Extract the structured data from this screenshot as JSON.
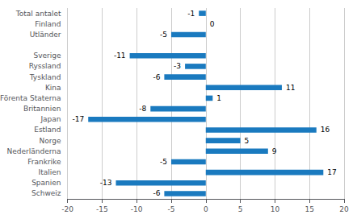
{
  "chart_data": {
    "type": "bar",
    "orientation": "horizontal",
    "categories": [
      "Schweiz",
      "Spanien",
      "Italien",
      "Frankrike",
      "Nederländerna",
      "Norge",
      "Estland",
      "Japan",
      "Britannien",
      "Förenta Staterna",
      "Kina",
      "Tyskland",
      "Ryssland",
      "Sverige",
      null,
      "Utländer",
      "Finland",
      "Total antalet"
    ],
    "values": [
      -6,
      -13,
      17,
      -5,
      9,
      5,
      16,
      -17,
      -8,
      1,
      11,
      -6,
      -3,
      -11,
      null,
      -5,
      0,
      -1
    ],
    "color": "#1a7abf",
    "xlim": [
      -20,
      20
    ],
    "xticks": [
      -20,
      -15,
      -10,
      -5,
      0,
      5,
      10,
      15,
      20
    ],
    "grid": true,
    "data_labels": true
  }
}
